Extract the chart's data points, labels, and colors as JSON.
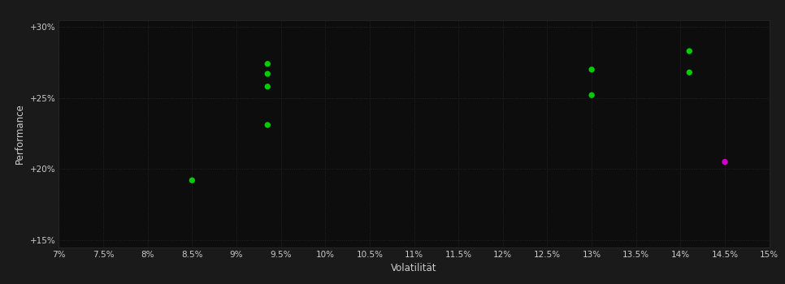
{
  "background_color": "#1a1a1a",
  "plot_bg_color": "#0d0d0d",
  "grid_color": "#2a2a2a",
  "text_color": "#cccccc",
  "xlabel": "Volatilität",
  "ylabel": "Performance",
  "xlim": [
    0.07,
    0.15
  ],
  "ylim": [
    0.145,
    0.305
  ],
  "xticks": [
    0.07,
    0.075,
    0.08,
    0.085,
    0.09,
    0.095,
    0.1,
    0.105,
    0.11,
    0.115,
    0.12,
    0.125,
    0.13,
    0.135,
    0.14,
    0.145,
    0.15
  ],
  "yticks": [
    0.15,
    0.2,
    0.25,
    0.3
  ],
  "ytick_labels": [
    "+15%",
    "+20%",
    "+25%",
    "+30%"
  ],
  "xtick_labels": [
    "7%",
    "7.5%",
    "8%",
    "8.5%",
    "9%",
    "9.5%",
    "10%",
    "10.5%",
    "11%",
    "11.5%",
    "12%",
    "12.5%",
    "13%",
    "13.5%",
    "14%",
    "14.5%",
    "15%"
  ],
  "green_points": [
    [
      0.0935,
      0.274
    ],
    [
      0.0935,
      0.267
    ],
    [
      0.0935,
      0.258
    ],
    [
      0.0935,
      0.231
    ],
    [
      0.085,
      0.192
    ],
    [
      0.13,
      0.27
    ],
    [
      0.13,
      0.252
    ],
    [
      0.141,
      0.283
    ],
    [
      0.141,
      0.268
    ]
  ],
  "magenta_points": [
    [
      0.145,
      0.205
    ]
  ],
  "green_color": "#00cc00",
  "magenta_color": "#cc00cc",
  "marker_size": 28
}
